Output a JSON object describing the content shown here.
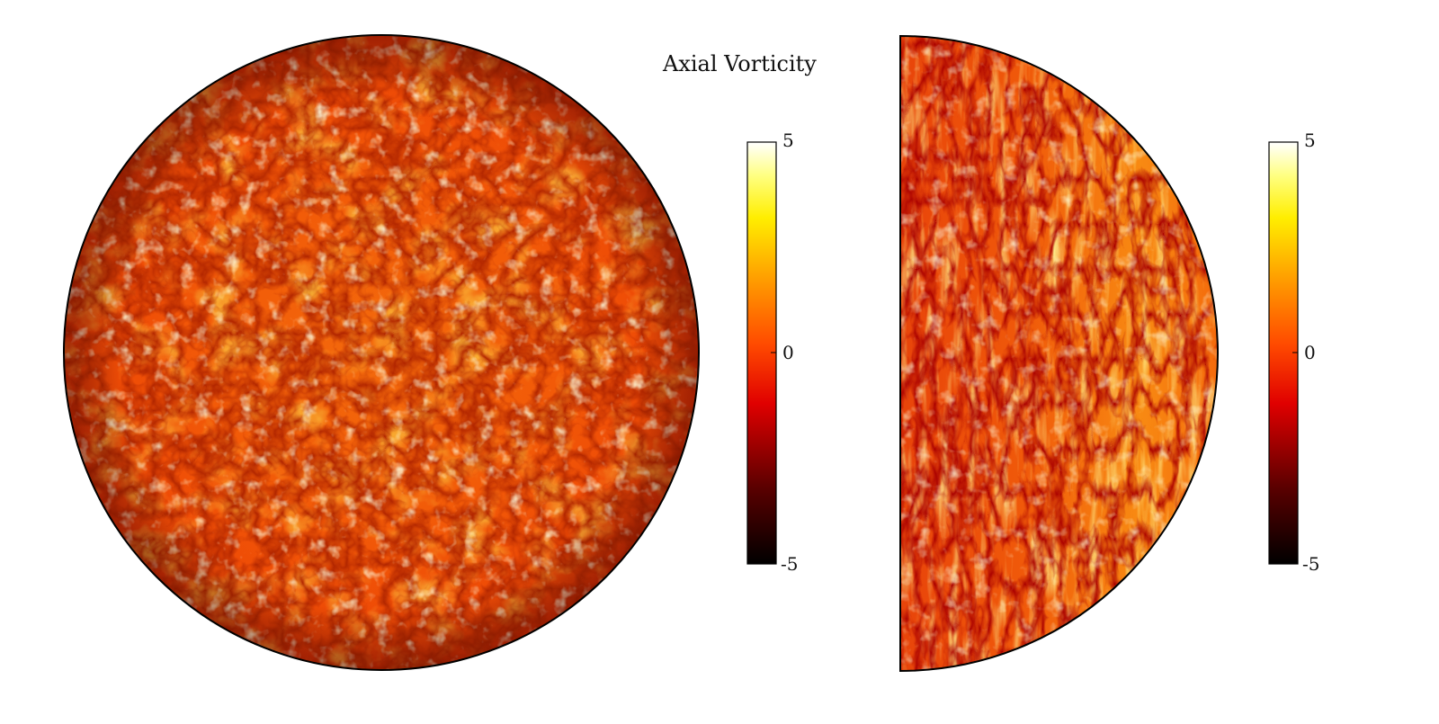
{
  "figure": {
    "title": "Axial Vorticity",
    "left_panel": {
      "shape": "full-disk",
      "field": "axial vorticity (equatorial slice)",
      "colorbar": {
        "colormap": "hot",
        "min": -5,
        "max": 5,
        "ticks": [
          "5",
          "0",
          "-5"
        ]
      }
    },
    "right_panel": {
      "shape": "half-disk (meridional slice)",
      "field": "axial vorticity (meridional slice)",
      "colorbar": {
        "colormap": "hot",
        "min": -5,
        "max": 5,
        "ticks": [
          "5",
          "0",
          "-5"
        ]
      }
    },
    "colors": {
      "black": "#000000",
      "dark_red": "#8b0000",
      "red": "#e01000",
      "orange": "#ff6a00",
      "yellow": "#ffee00",
      "white": "#ffffff"
    }
  }
}
